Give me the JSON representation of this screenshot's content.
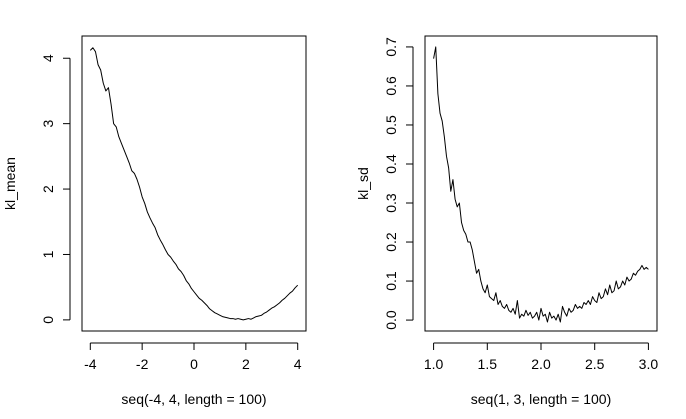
{
  "chart_data": [
    {
      "type": "line",
      "xlabel": "seq(-4, 4, length = 100)",
      "ylabel": "kl_mean",
      "xlim": [
        -4.32,
        4.32
      ],
      "ylim": [
        -0.17,
        4.34
      ],
      "x_ticks": [
        -4,
        -2,
        0,
        2,
        4
      ],
      "x_tick_labels": [
        "-4",
        "-2",
        "0",
        "2",
        "4"
      ],
      "y_ticks": [
        0,
        1,
        2,
        3,
        4
      ],
      "y_tick_labels": [
        "0",
        "1",
        "2",
        "3",
        "4"
      ],
      "grid": false,
      "series": [
        {
          "x": [
            -4.0,
            -3.9,
            -3.8,
            -3.7,
            -3.6,
            -3.5,
            -3.4,
            -3.3,
            -3.2,
            -3.1,
            -3.0,
            -2.9,
            -2.8,
            -2.7,
            -2.6,
            -2.5,
            -2.4,
            -2.3,
            -2.2,
            -2.1,
            -2.0,
            -1.9,
            -1.8,
            -1.7,
            -1.6,
            -1.5,
            -1.4,
            -1.3,
            -1.2,
            -1.1,
            -1.0,
            -0.9,
            -0.8,
            -0.7,
            -0.6,
            -0.5,
            -0.4,
            -0.3,
            -0.2,
            -0.1,
            0.0,
            0.1,
            0.2,
            0.3,
            0.4,
            0.5,
            0.6,
            0.7,
            0.8,
            0.9,
            1.0,
            1.1,
            1.2,
            1.3,
            1.4,
            1.5,
            1.6,
            1.7,
            1.8,
            1.9,
            2.0,
            2.1,
            2.2,
            2.3,
            2.4,
            2.5,
            2.6,
            2.7,
            2.8,
            2.9,
            3.0,
            3.1,
            3.2,
            3.3,
            3.4,
            3.5,
            3.6,
            3.7,
            3.8,
            3.9,
            4.0
          ],
          "y": [
            4.12,
            4.16,
            4.1,
            3.9,
            3.82,
            3.62,
            3.5,
            3.55,
            3.3,
            3.0,
            2.95,
            2.8,
            2.7,
            2.6,
            2.5,
            2.4,
            2.28,
            2.24,
            2.15,
            2.03,
            1.88,
            1.78,
            1.65,
            1.56,
            1.48,
            1.41,
            1.3,
            1.22,
            1.15,
            1.07,
            1.0,
            0.96,
            0.9,
            0.85,
            0.78,
            0.74,
            0.68,
            0.6,
            0.55,
            0.48,
            0.43,
            0.38,
            0.33,
            0.3,
            0.26,
            0.22,
            0.17,
            0.14,
            0.11,
            0.09,
            0.07,
            0.05,
            0.04,
            0.03,
            0.02,
            0.02,
            0.01,
            0.02,
            0.01,
            0.0,
            0.01,
            0.02,
            0.01,
            0.03,
            0.05,
            0.06,
            0.07,
            0.1,
            0.12,
            0.15,
            0.18,
            0.2,
            0.23,
            0.26,
            0.3,
            0.33,
            0.37,
            0.41,
            0.44,
            0.49,
            0.53
          ]
        }
      ]
    },
    {
      "type": "line",
      "xlabel": "seq(1, 3, length = 100)",
      "ylabel": "kl_sd",
      "xlim": [
        0.92,
        3.08
      ],
      "ylim": [
        -0.028,
        0.728
      ],
      "x_ticks": [
        1.0,
        1.5,
        2.0,
        2.5,
        3.0
      ],
      "x_tick_labels": [
        "1.0",
        "1.5",
        "2.0",
        "2.5",
        "3.0"
      ],
      "y_ticks": [
        0.0,
        0.1,
        0.2,
        0.3,
        0.4,
        0.5,
        0.6,
        0.7
      ],
      "y_tick_labels": [
        "0.0",
        "0.1",
        "0.2",
        "0.3",
        "0.4",
        "0.5",
        "0.6",
        "0.7"
      ],
      "grid": false,
      "series": [
        {
          "x": [
            1.0,
            1.02,
            1.04,
            1.06,
            1.08,
            1.1,
            1.12,
            1.14,
            1.16,
            1.18,
            1.2,
            1.22,
            1.24,
            1.26,
            1.28,
            1.3,
            1.32,
            1.34,
            1.36,
            1.38,
            1.4,
            1.42,
            1.44,
            1.46,
            1.48,
            1.5,
            1.52,
            1.54,
            1.56,
            1.58,
            1.6,
            1.62,
            1.64,
            1.66,
            1.68,
            1.7,
            1.72,
            1.74,
            1.76,
            1.78,
            1.8,
            1.82,
            1.84,
            1.86,
            1.88,
            1.9,
            1.92,
            1.94,
            1.96,
            1.98,
            2.0,
            2.02,
            2.04,
            2.06,
            2.08,
            2.1,
            2.12,
            2.14,
            2.16,
            2.18,
            2.2,
            2.22,
            2.24,
            2.26,
            2.28,
            2.3,
            2.32,
            2.34,
            2.36,
            2.38,
            2.4,
            2.42,
            2.44,
            2.46,
            2.48,
            2.5,
            2.52,
            2.54,
            2.56,
            2.58,
            2.6,
            2.62,
            2.64,
            2.66,
            2.68,
            2.7,
            2.72,
            2.74,
            2.76,
            2.78,
            2.8,
            2.82,
            2.84,
            2.86,
            2.88,
            2.9,
            2.92,
            2.94,
            2.96,
            2.98,
            3.0
          ],
          "y": [
            0.67,
            0.7,
            0.58,
            0.53,
            0.51,
            0.47,
            0.42,
            0.39,
            0.33,
            0.36,
            0.31,
            0.29,
            0.3,
            0.25,
            0.23,
            0.22,
            0.2,
            0.2,
            0.18,
            0.15,
            0.12,
            0.13,
            0.1,
            0.08,
            0.07,
            0.09,
            0.06,
            0.055,
            0.05,
            0.07,
            0.04,
            0.05,
            0.035,
            0.03,
            0.04,
            0.025,
            0.02,
            0.03,
            0.015,
            0.05,
            0.005,
            0.015,
            0.01,
            0.025,
            0.012,
            0.02,
            0.005,
            0.01,
            0.02,
            0.0,
            0.03,
            0.01,
            0.015,
            -0.005,
            0.02,
            0.005,
            0.01,
            0.0,
            0.015,
            -0.005,
            0.035,
            0.02,
            0.01,
            0.03,
            0.02,
            0.025,
            0.04,
            0.03,
            0.035,
            0.03,
            0.045,
            0.04,
            0.05,
            0.04,
            0.06,
            0.05,
            0.045,
            0.07,
            0.055,
            0.06,
            0.08,
            0.065,
            0.09,
            0.07,
            0.075,
            0.1,
            0.08,
            0.085,
            0.1,
            0.09,
            0.11,
            0.1,
            0.105,
            0.12,
            0.115,
            0.125,
            0.13,
            0.14,
            0.13,
            0.135,
            0.13
          ]
        }
      ]
    }
  ]
}
